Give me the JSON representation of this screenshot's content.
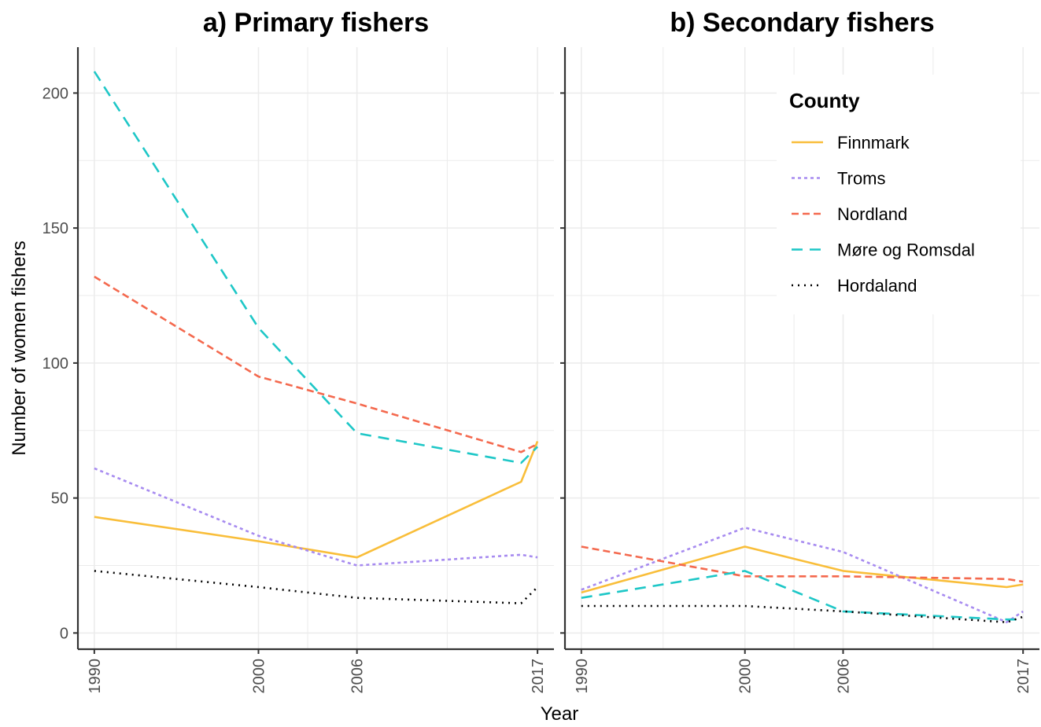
{
  "chart_data": {
    "type": "line",
    "xlabel": "Year",
    "ylabel": "Number of women fishers",
    "x_ticks": [
      1990,
      2000,
      2006,
      2017
    ],
    "y_ticks": [
      0,
      50,
      100,
      150,
      200
    ],
    "xlim": [
      1989,
      2018
    ],
    "ylim": [
      -6,
      217
    ],
    "grid": true,
    "legend": {
      "title": "County",
      "placement": "top-right",
      "entries": [
        {
          "name": "Finnmark",
          "color": "#F9BE3A",
          "dash": "solid"
        },
        {
          "name": "Troms",
          "color": "#A78BF0",
          "dash": "dotted-short"
        },
        {
          "name": "Nordland",
          "color": "#F4694E",
          "dash": "dashed"
        },
        {
          "name": "Møre og Romsdal",
          "color": "#1EC7C7",
          "dash": "long-dash"
        },
        {
          "name": "Hordaland",
          "color": "#000000",
          "dash": "dotted"
        }
      ]
    },
    "panels": [
      {
        "title": "a) Primary fishers",
        "series": [
          {
            "name": "Finnmark",
            "x": [
              1990,
              2000,
              2006,
              2016,
              2017
            ],
            "y": [
              43,
              34,
              28,
              56,
              71
            ]
          },
          {
            "name": "Troms",
            "x": [
              1990,
              2000,
              2006,
              2016,
              2017
            ],
            "y": [
              61,
              36,
              25,
              29,
              28
            ]
          },
          {
            "name": "Nordland",
            "x": [
              1990,
              2000,
              2006,
              2016,
              2017
            ],
            "y": [
              132,
              95,
              85,
              67,
              70
            ]
          },
          {
            "name": "Møre og Romsdal",
            "x": [
              1990,
              2000,
              2006,
              2016,
              2017
            ],
            "y": [
              208,
              113,
              74,
              63,
              69
            ]
          },
          {
            "name": "Hordaland",
            "x": [
              1990,
              2000,
              2006,
              2016,
              2017
            ],
            "y": [
              23,
              17,
              13,
              11,
              17
            ]
          }
        ]
      },
      {
        "title": "b) Secondary fishers",
        "series": [
          {
            "name": "Finnmark",
            "x": [
              1990,
              2000,
              2006,
              2016,
              2017
            ],
            "y": [
              15,
              32,
              23,
              17,
              18
            ]
          },
          {
            "name": "Troms",
            "x": [
              1990,
              2000,
              2006,
              2016,
              2017
            ],
            "y": [
              16,
              39,
              30,
              4,
              8
            ]
          },
          {
            "name": "Nordland",
            "x": [
              1990,
              2000,
              2006,
              2016,
              2017
            ],
            "y": [
              32,
              21,
              21,
              20,
              19
            ]
          },
          {
            "name": "Møre og Romsdal",
            "x": [
              1990,
              2000,
              2006,
              2016,
              2017
            ],
            "y": [
              13,
              23,
              8,
              5,
              5
            ]
          },
          {
            "name": "Hordaland",
            "x": [
              1990,
              2000,
              2006,
              2016,
              2017
            ],
            "y": [
              10,
              10,
              8,
              4,
              6
            ]
          }
        ]
      }
    ]
  }
}
